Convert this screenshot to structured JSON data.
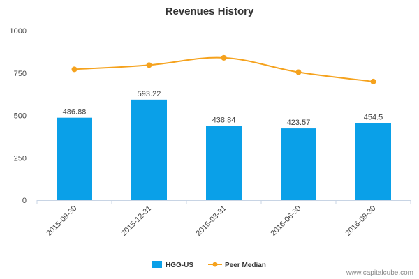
{
  "chart_data": {
    "type": "bar",
    "title": "Revenues History",
    "xlabel": "",
    "ylabel": "",
    "categories": [
      "2015-09-30",
      "2015-12-31",
      "2016-03-31",
      "2016-06-30",
      "2016-09-30"
    ],
    "series": [
      {
        "name": "HGG-US",
        "type": "bar",
        "color": "#0aa0e8",
        "values": [
          486.88,
          593.22,
          438.84,
          423.57,
          454.5
        ],
        "labels": [
          "486.88",
          "593.22",
          "438.84",
          "423.57",
          "454.5"
        ]
      },
      {
        "name": "Peer Median",
        "type": "line",
        "color": "#f5a21d",
        "values": [
          772,
          797,
          840,
          755,
          700
        ]
      }
    ],
    "ylim": [
      0,
      1000
    ],
    "yticks": [
      0,
      250,
      500,
      750,
      1000
    ],
    "ytick_labels": [
      "0",
      "250",
      "500",
      "750",
      "1000"
    ],
    "grid": false,
    "legend_position": "bottom"
  },
  "watermark": "www.capitalcube.com"
}
